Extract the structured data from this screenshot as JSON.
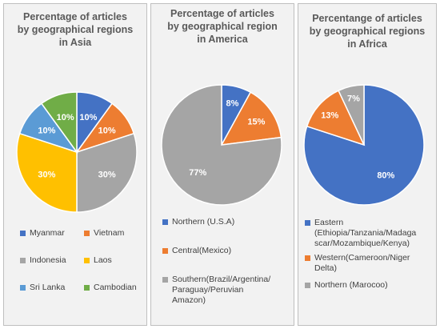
{
  "chart_data": [
    {
      "type": "pie",
      "title": "Percentage of articles\nby geographical regions\nin Asia",
      "categories": [
        "Myanmar",
        "Vietnam",
        "Indonesia",
        "Laos",
        "Sri Lanka",
        "Cambodian"
      ],
      "values": [
        10,
        10,
        30,
        30,
        10,
        10
      ],
      "labels": [
        "10%",
        "10%",
        "30%",
        "30%",
        "10%",
        "10%"
      ],
      "colors": [
        "#4472c4",
        "#ed7d31",
        "#a5a5a5",
        "#ffc000",
        "#5b9bd5",
        "#70ad47"
      ],
      "legend_position": "bottom"
    },
    {
      "type": "pie",
      "title": "Percentage of articles\nby geographical region\nin America",
      "categories": [
        "Northern (U.S.A)",
        "Central(Mexico)",
        "Southern(Brazil/Argentina/\nParaguay/Peruvian\nAmazon)"
      ],
      "values": [
        8,
        15,
        77
      ],
      "labels": [
        "8%",
        "15%",
        "77%"
      ],
      "colors": [
        "#4472c4",
        "#ed7d31",
        "#a5a5a5"
      ],
      "legend_position": "bottom"
    },
    {
      "type": "pie",
      "title": "Percentange of articles\nby geographical regions\nin Africa",
      "categories": [
        "Eastern\n(Ethiopia/Tanzania/Madaga\nscar/Mozambique/Kenya)",
        "Western(Cameroon/Niger\nDelta)",
        "Northern (Marocoo)"
      ],
      "values": [
        80,
        13,
        7
      ],
      "labels": [
        "80%",
        "13%",
        "7%"
      ],
      "colors": [
        "#4472c4",
        "#ed7d31",
        "#a5a5a5"
      ],
      "legend_position": "bottom"
    }
  ]
}
